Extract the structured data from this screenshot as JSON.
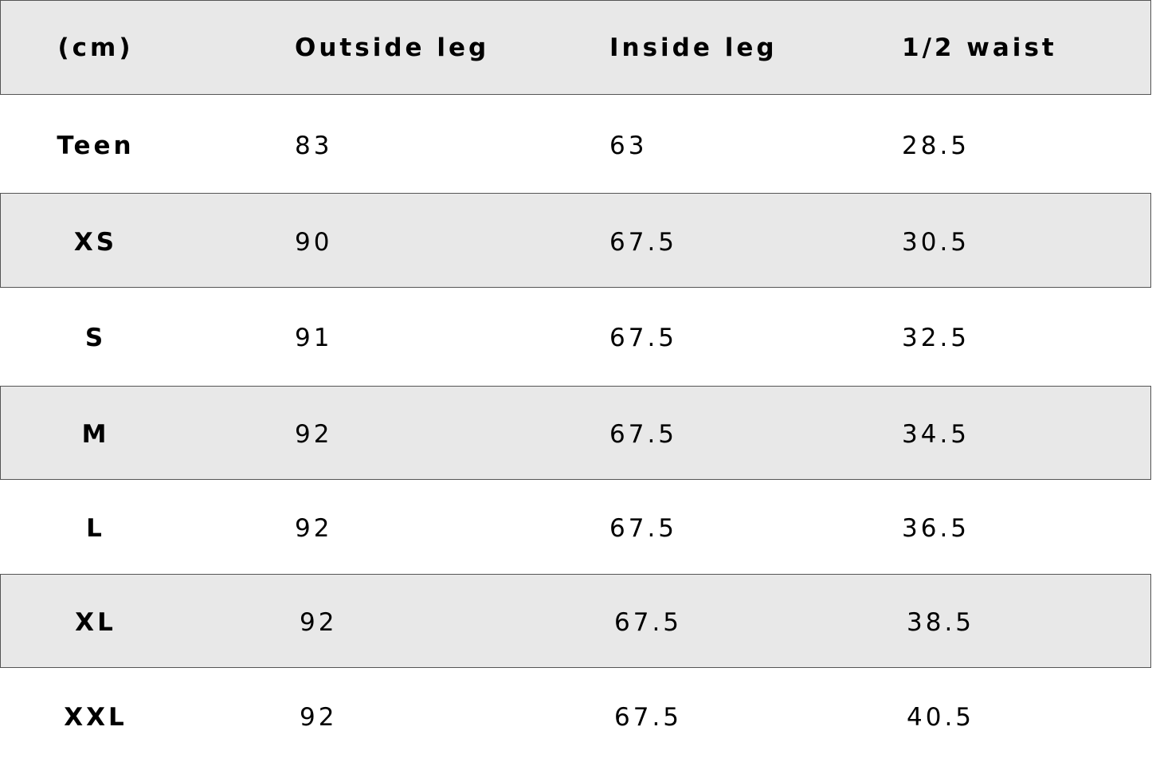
{
  "table": {
    "header": [
      "(cm)",
      "Outside leg",
      "Inside leg",
      "1/2 waist"
    ],
    "rows": [
      [
        "Teen",
        83,
        63,
        28.5
      ],
      [
        "XS",
        90,
        67.5,
        30.5
      ],
      [
        "S",
        91,
        67.5,
        32.5
      ],
      [
        "M",
        92,
        67.5,
        34.5
      ],
      [
        "L",
        92,
        67.5,
        36.5
      ],
      [
        "XL",
        92,
        67.5,
        38.5
      ],
      [
        "XXL",
        92,
        67.5,
        40.5
      ]
    ]
  }
}
